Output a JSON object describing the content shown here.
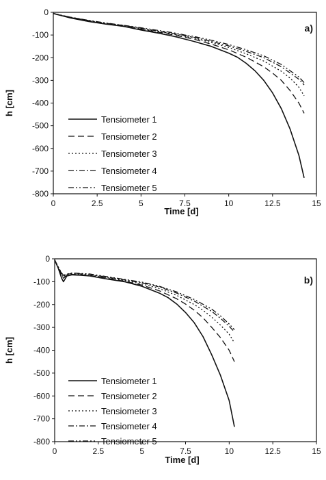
{
  "chart_data": [
    {
      "type": "line",
      "panel_label": "a)",
      "xlabel": "Time [d]",
      "ylabel": "h [cm]",
      "xlim": [
        0,
        15
      ],
      "ylim": [
        -800,
        0
      ],
      "xticks": [
        0,
        2.5,
        5,
        7.5,
        10,
        12.5,
        15
      ],
      "xtick_labels": [
        "0",
        "2.5",
        "5",
        "7.5",
        "10",
        "12.5",
        "15"
      ],
      "yticks": [
        0,
        -100,
        -200,
        -300,
        -400,
        -500,
        -600,
        -700,
        -800
      ],
      "ytick_labels": [
        "0",
        "-100",
        "-200",
        "-300",
        "-400",
        "-500",
        "-600",
        "-700",
        "-800"
      ],
      "grid": false,
      "legend_position": "bottom-left",
      "series": [
        {
          "name": "Tensiometer 1",
          "dash": "solid",
          "x": [
            0,
            1,
            2,
            3,
            4,
            5,
            6,
            7,
            7.5,
            8,
            9,
            10,
            10.5,
            11,
            11.5,
            12,
            12.5,
            13,
            13.5,
            14,
            14.3
          ],
          "y": [
            -5,
            -25,
            -40,
            -52,
            -62,
            -78,
            -92,
            -108,
            -118,
            -128,
            -150,
            -180,
            -198,
            -225,
            -258,
            -300,
            -355,
            -425,
            -515,
            -630,
            -730
          ]
        },
        {
          "name": "Tensiometer 2",
          "dash": "long-dash",
          "x": [
            0,
            1,
            2,
            3,
            4,
            5,
            6,
            7,
            7.5,
            8,
            9,
            10,
            11,
            12,
            12.5,
            13,
            13.5,
            14,
            14.3
          ],
          "y": [
            -5,
            -25,
            -40,
            -52,
            -62,
            -75,
            -88,
            -102,
            -110,
            -118,
            -140,
            -165,
            -198,
            -240,
            -268,
            -300,
            -345,
            -400,
            -445
          ]
        },
        {
          "name": "Tensiometer 3",
          "dash": "dotted",
          "x": [
            0,
            1,
            2,
            3,
            4,
            5,
            6,
            7,
            7.5,
            8,
            9,
            10,
            11,
            12,
            13,
            13.5,
            14,
            14.3
          ],
          "y": [
            -5,
            -22,
            -36,
            -50,
            -60,
            -72,
            -85,
            -98,
            -106,
            -113,
            -133,
            -155,
            -183,
            -215,
            -260,
            -290,
            -330,
            -368
          ]
        },
        {
          "name": "Tensiometer 4",
          "dash": "dash-dot",
          "x": [
            0,
            1,
            2,
            3,
            4,
            5,
            6,
            7,
            7.5,
            8,
            9,
            10,
            11,
            12,
            13,
            14,
            14.3
          ],
          "y": [
            -5,
            -22,
            -36,
            -48,
            -58,
            -70,
            -83,
            -96,
            -103,
            -110,
            -128,
            -148,
            -172,
            -200,
            -240,
            -295,
            -320
          ]
        },
        {
          "name": "Tensiometer 5",
          "dash": "dash-dot-dot",
          "x": [
            0,
            1,
            2,
            3,
            4,
            5,
            6,
            7,
            7.5,
            8,
            9,
            10,
            11,
            12,
            13,
            14,
            14.3
          ],
          "y": [
            -5,
            -22,
            -35,
            -47,
            -57,
            -68,
            -80,
            -92,
            -100,
            -106,
            -123,
            -142,
            -165,
            -192,
            -230,
            -285,
            -310
          ]
        }
      ]
    },
    {
      "type": "line",
      "panel_label": "b)",
      "xlabel": "Time [d]",
      "ylabel": "h [cm]",
      "xlim": [
        0,
        15
      ],
      "ylim": [
        -800,
        0
      ],
      "xticks": [
        0,
        2.5,
        5,
        7.5,
        10,
        12.5,
        15
      ],
      "xtick_labels": [
        "0",
        "2.5",
        "5",
        "7.5",
        "10",
        "12.5",
        "15"
      ],
      "yticks": [
        0,
        -100,
        -200,
        -300,
        -400,
        -500,
        -600,
        -700,
        -800
      ],
      "ytick_labels": [
        "0",
        "-100",
        "-200",
        "-300",
        "-400",
        "-500",
        "-600",
        "-700",
        "-800"
      ],
      "grid": false,
      "legend_position": "bottom-left",
      "series": [
        {
          "name": "Tensiometer 1",
          "dash": "solid",
          "x": [
            0,
            0.2,
            0.4,
            0.5,
            0.7,
            1,
            1.5,
            2,
            3,
            4,
            5,
            6,
            6.5,
            7,
            7.5,
            8,
            8.5,
            9,
            9.5,
            10,
            10.3
          ],
          "y": [
            -5,
            -40,
            -85,
            -100,
            -75,
            -70,
            -72,
            -75,
            -88,
            -100,
            -120,
            -150,
            -170,
            -198,
            -235,
            -280,
            -340,
            -420,
            -510,
            -620,
            -735
          ]
        },
        {
          "name": "Tensiometer 2",
          "dash": "long-dash",
          "x": [
            0,
            0.2,
            0.4,
            0.5,
            0.7,
            1,
            1.5,
            2,
            3,
            4,
            5,
            6,
            7,
            7.5,
            8,
            8.5,
            9,
            9.5,
            10,
            10.3
          ],
          "y": [
            -5,
            -40,
            -75,
            -85,
            -72,
            -68,
            -70,
            -73,
            -85,
            -98,
            -115,
            -140,
            -175,
            -198,
            -225,
            -258,
            -300,
            -345,
            -400,
            -450
          ]
        },
        {
          "name": "Tensiometer 3",
          "dash": "dotted",
          "x": [
            0,
            0.2,
            0.4,
            0.5,
            0.7,
            1,
            1.5,
            2,
            3,
            4,
            5,
            6,
            7,
            8,
            8.5,
            9,
            9.5,
            10,
            10.3
          ],
          "y": [
            -5,
            -35,
            -70,
            -80,
            -70,
            -66,
            -68,
            -70,
            -82,
            -95,
            -110,
            -130,
            -160,
            -200,
            -225,
            -255,
            -290,
            -330,
            -368
          ]
        },
        {
          "name": "Tensiometer 4",
          "dash": "dash-dot",
          "x": [
            0,
            0.2,
            0.4,
            0.5,
            0.7,
            1,
            1.5,
            2,
            3,
            4,
            5,
            6,
            7,
            8,
            9,
            9.5,
            10,
            10.3
          ],
          "y": [
            -5,
            -35,
            -65,
            -75,
            -68,
            -64,
            -66,
            -68,
            -80,
            -92,
            -105,
            -123,
            -150,
            -185,
            -230,
            -260,
            -295,
            -320
          ]
        },
        {
          "name": "Tensiometer 5",
          "dash": "dash-dot-dot",
          "x": [
            0,
            0.2,
            0.4,
            0.5,
            0.7,
            1,
            1.5,
            2,
            3,
            4,
            5,
            6,
            7,
            8,
            9,
            9.5,
            10,
            10.3
          ],
          "y": [
            -5,
            -35,
            -62,
            -72,
            -66,
            -62,
            -64,
            -66,
            -78,
            -90,
            -102,
            -120,
            -145,
            -178,
            -220,
            -250,
            -285,
            -310
          ]
        }
      ]
    }
  ]
}
